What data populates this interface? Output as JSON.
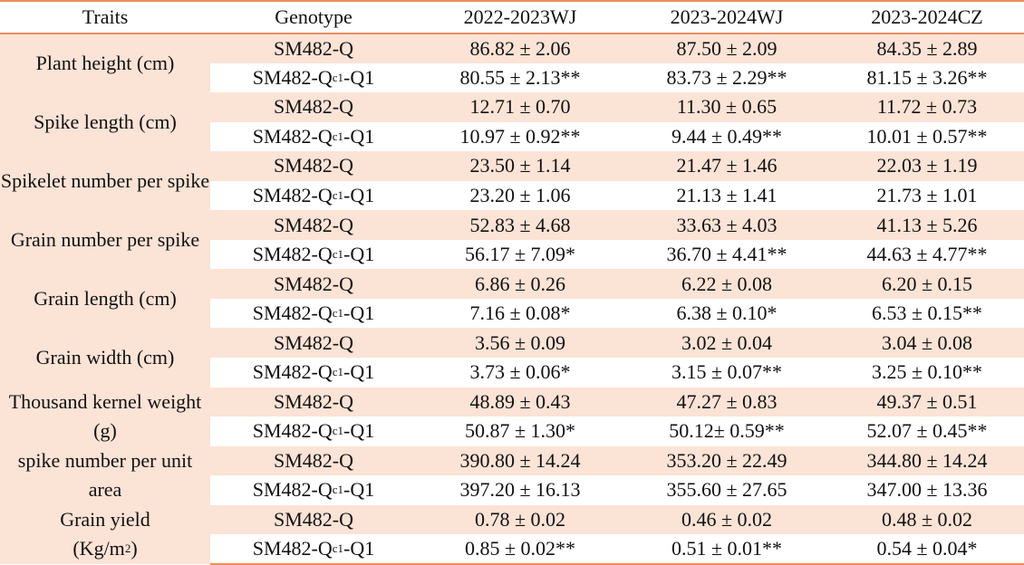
{
  "header": {
    "traits": "Traits",
    "genotype": "Genotype",
    "col1": "2022-2023WJ",
    "col2": "2023-2024WJ",
    "col3": "2023-2024CZ"
  },
  "genotypes": {
    "wild_type": "SM482-Q",
    "mutant_prefix": "SM482-Q",
    "mutant_sup": "c1",
    "mutant_suffix": "-Q1"
  },
  "traits": [
    {
      "name": "Plant height (cm)",
      "rows": [
        {
          "v1": "86.82 ± 2.06",
          "v2": "87.50 ± 2.09",
          "v3": "84.35 ± 2.89"
        },
        {
          "v1": "80.55 ± 2.13**",
          "v2": "83.73 ± 2.29**",
          "v3": "81.15 ± 3.26**"
        }
      ]
    },
    {
      "name": "Spike length (cm)",
      "rows": [
        {
          "v1": "12.71 ± 0.70",
          "v2": "11.30 ± 0.65",
          "v3": "11.72 ± 0.73"
        },
        {
          "v1": "10.97 ± 0.92**",
          "v2": "9.44 ± 0.49**",
          "v3": "10.01 ± 0.57**"
        }
      ]
    },
    {
      "name": "Spikelet number per spike",
      "rows": [
        {
          "v1": "23.50 ± 1.14",
          "v2": "21.47 ± 1.46",
          "v3": "22.03 ± 1.19"
        },
        {
          "v1": "23.20 ± 1.06",
          "v2": "21.13 ± 1.41",
          "v3": "21.73 ± 1.01"
        }
      ]
    },
    {
      "name": "Grain number per spike",
      "rows": [
        {
          "v1": "52.83 ± 4.68",
          "v2": "33.63 ± 4.03",
          "v3": "41.13 ± 5.26"
        },
        {
          "v1": "56.17 ± 7.09*",
          "v2": "36.70 ± 4.41**",
          "v3": "44.63 ± 4.77**"
        }
      ]
    },
    {
      "name": "Grain length (cm)",
      "rows": [
        {
          "v1": "6.86 ± 0.26",
          "v2": "6.22 ± 0.08",
          "v3": "6.20 ± 0.15"
        },
        {
          "v1": "7.16 ± 0.08*",
          "v2": "6.38 ± 0.10*",
          "v3": "6.53 ± 0.15**"
        }
      ]
    },
    {
      "name": "Grain width (cm)",
      "rows": [
        {
          "v1": "3.56 ± 0.09",
          "v2": "3.02 ± 0.04",
          "v3": "3.04 ± 0.08"
        },
        {
          "v1": "3.73 ± 0.06*",
          "v2": "3.15 ± 0.07**",
          "v3": "3.25 ± 0.10**"
        }
      ]
    },
    {
      "name": "Thousand kernel weight (g)",
      "rows": [
        {
          "v1": "48.89 ± 0.43",
          "v2": "47.27 ± 0.83",
          "v3": "49.37 ± 0.51"
        },
        {
          "v1": "50.87 ± 1.30*",
          "v2": "50.12± 0.59**",
          "v3": "52.07 ± 0.45**"
        }
      ]
    },
    {
      "name": "spike number per unit area",
      "rows": [
        {
          "v1": "390.80 ± 14.24",
          "v2": "353.20 ± 22.49",
          "v3": "344.80 ± 14.24"
        },
        {
          "v1": "397.20 ± 16.13",
          "v2": "355.60 ± 27.65",
          "v3": "347.00 ± 13.36"
        }
      ]
    },
    {
      "name_main": "Grain yield",
      "name_unit_prefix": "(Kg/m",
      "name_unit_sup": "2",
      "name_unit_suffix": ")",
      "rows": [
        {
          "v1": "0.78 ± 0.02",
          "v2": "0.46 ± 0.02",
          "v3": "0.48 ± 0.02"
        },
        {
          "v1": "0.85 ± 0.02**",
          "v2": "0.51 ± 0.01**",
          "v3": "0.54 ± 0.04*"
        }
      ]
    }
  ],
  "colors": {
    "rule": "#ed8d5a",
    "band": "#fbe3d6"
  }
}
